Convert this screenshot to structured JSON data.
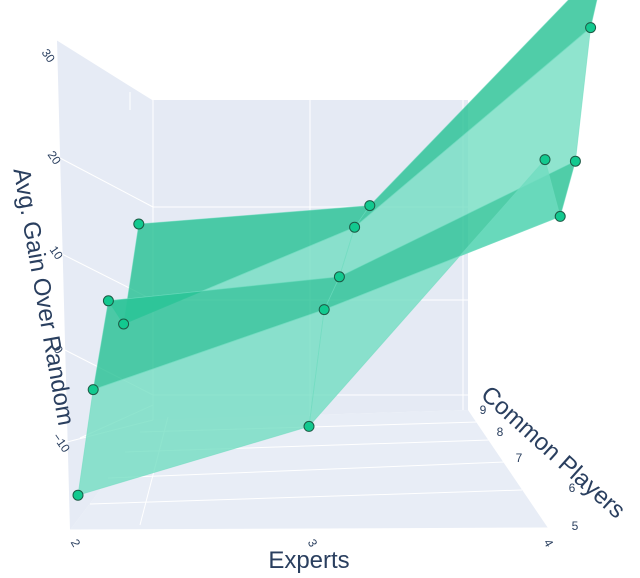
{
  "chart_data": {
    "type": "surface3d",
    "title": "",
    "axes": {
      "x": {
        "label": "Experts",
        "ticks": [
          "2",
          "3",
          "4"
        ],
        "range": [
          2,
          4
        ]
      },
      "y": {
        "label": "Common Players",
        "ticks": [
          "5",
          "6",
          "7",
          "8",
          "9"
        ],
        "range": [
          4.5,
          9.5
        ]
      },
      "z": {
        "label": "Avg. Gain Over Random",
        "ticks": [
          "−10",
          "0",
          "10",
          "20",
          "30"
        ],
        "range": [
          -15,
          30
        ]
      }
    },
    "points": [
      {
        "experts": 2,
        "common_players": 5,
        "gain": -13.5
      },
      {
        "experts": 2,
        "common_players": 6,
        "gain": -6
      },
      {
        "experts": 2,
        "common_players": 7,
        "gain": 0
      },
      {
        "experts": 2,
        "common_players": 8,
        "gain": -4
      },
      {
        "experts": 2,
        "common_players": 9,
        "gain": 3
      },
      {
        "experts": 3,
        "common_players": 5,
        "gain": -7
      },
      {
        "experts": 3,
        "common_players": 6,
        "gain": 1.5
      },
      {
        "experts": 3,
        "common_players": 7,
        "gain": 2.5
      },
      {
        "experts": 3,
        "common_players": 8,
        "gain": 5
      },
      {
        "experts": 3,
        "common_players": 9,
        "gain": 5
      },
      {
        "experts": 4,
        "common_players": 5,
        "gain": 17
      },
      {
        "experts": 4,
        "common_players": 6,
        "gain": 10
      },
      {
        "experts": 4,
        "common_players": 7,
        "gain": 13
      },
      {
        "experts": 4,
        "common_players": 8,
        "gain": 23
      },
      {
        "experts": 4,
        "common_players": 9,
        "gain": 27
      }
    ],
    "grid": true,
    "legend": "none",
    "colors": {
      "surface_dark": "#1fbf8f",
      "surface_light": "#6fdcc0",
      "marker": "#12c98f",
      "marker_edge": "#1c5a45",
      "pane_left": "#e6ebf5",
      "pane_back": "#e5eaf4",
      "pane_floor": "#e8edf6",
      "grid": "#ffffff",
      "text": "#2a3f5f"
    }
  }
}
